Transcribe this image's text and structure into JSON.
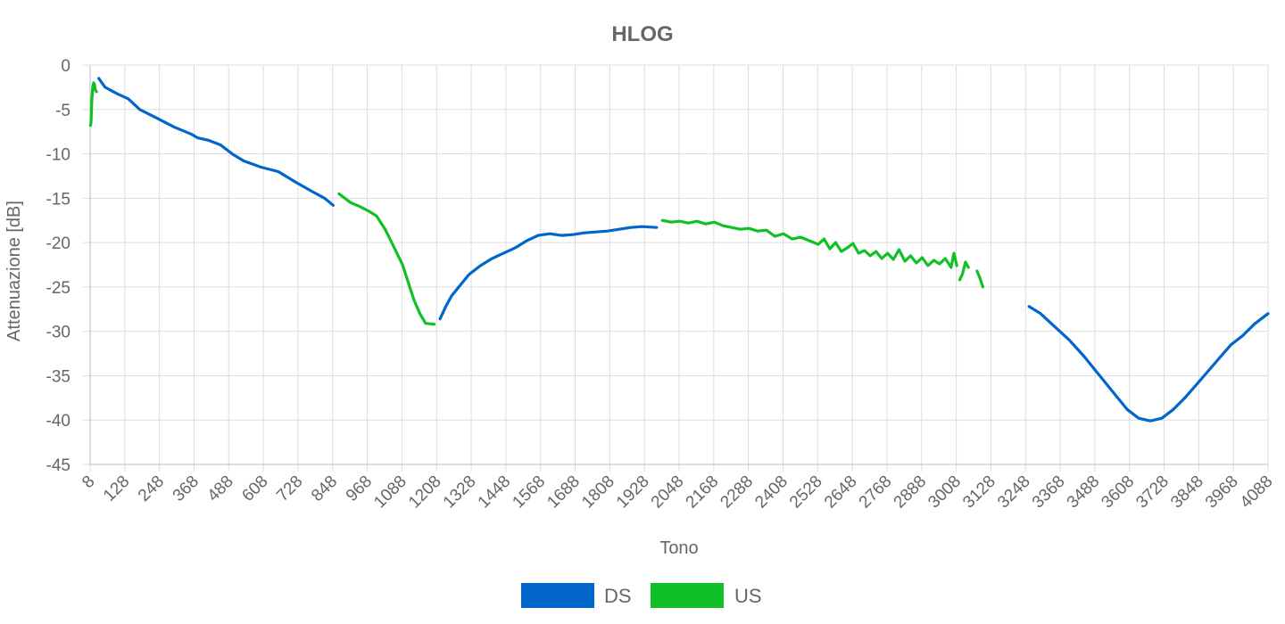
{
  "chart_data": {
    "type": "line",
    "title": "HLOG",
    "xlabel": "Tono",
    "ylabel": "Attenuazione [dB]",
    "xlim": [
      8,
      4088
    ],
    "ylim": [
      -45,
      0
    ],
    "grid": true,
    "legend_position": "bottom",
    "x_ticks": [
      8,
      128,
      248,
      368,
      488,
      608,
      728,
      848,
      968,
      1088,
      1208,
      1328,
      1448,
      1568,
      1688,
      1808,
      1928,
      2048,
      2168,
      2288,
      2408,
      2528,
      2648,
      2768,
      2888,
      3008,
      3128,
      3248,
      3368,
      3488,
      3608,
      3728,
      3848,
      3968,
      4088
    ],
    "y_ticks": [
      0,
      -5,
      -10,
      -15,
      -20,
      -25,
      -30,
      -35,
      -40,
      -45
    ],
    "series": [
      {
        "name": "DS",
        "color": "#0066CC",
        "segments": [
          [
            [
              38,
              -1.5
            ],
            [
              60,
              -2.5
            ],
            [
              100,
              -3.2
            ],
            [
              140,
              -3.8
            ],
            [
              180,
              -5.0
            ],
            [
              240,
              -6.0
            ],
            [
              300,
              -7.0
            ],
            [
              360,
              -7.8
            ],
            [
              380,
              -8.2
            ],
            [
              420,
              -8.5
            ],
            [
              460,
              -9.0
            ],
            [
              500,
              -10.0
            ],
            [
              540,
              -10.8
            ],
            [
              600,
              -11.5
            ],
            [
              660,
              -12.0
            ],
            [
              720,
              -13.2
            ],
            [
              780,
              -14.3
            ],
            [
              820,
              -15.0
            ],
            [
              850,
              -15.8
            ]
          ],
          [
            [
              1220,
              -28.6
            ],
            [
              1240,
              -27.2
            ],
            [
              1260,
              -26.0
            ],
            [
              1290,
              -24.8
            ],
            [
              1320,
              -23.6
            ],
            [
              1360,
              -22.6
            ],
            [
              1400,
              -21.8
            ],
            [
              1440,
              -21.2
            ],
            [
              1480,
              -20.6
            ],
            [
              1520,
              -19.8
            ],
            [
              1560,
              -19.2
            ],
            [
              1600,
              -19.0
            ],
            [
              1640,
              -19.2
            ],
            [
              1680,
              -19.1
            ],
            [
              1720,
              -18.9
            ],
            [
              1760,
              -18.8
            ],
            [
              1800,
              -18.7
            ],
            [
              1840,
              -18.5
            ],
            [
              1880,
              -18.3
            ],
            [
              1920,
              -18.2
            ],
            [
              1970,
              -18.3
            ]
          ],
          [
            [
              3260,
              -27.2
            ],
            [
              3300,
              -28.0
            ],
            [
              3350,
              -29.5
            ],
            [
              3400,
              -31.0
            ],
            [
              3450,
              -32.8
            ],
            [
              3500,
              -34.8
            ],
            [
              3550,
              -36.8
            ],
            [
              3600,
              -38.8
            ],
            [
              3640,
              -39.8
            ],
            [
              3680,
              -40.1
            ],
            [
              3720,
              -39.8
            ],
            [
              3760,
              -38.8
            ],
            [
              3800,
              -37.5
            ],
            [
              3840,
              -36.0
            ],
            [
              3880,
              -34.5
            ],
            [
              3920,
              -33.0
            ],
            [
              3960,
              -31.5
            ],
            [
              4000,
              -30.5
            ],
            [
              4040,
              -29.2
            ],
            [
              4088,
              -28.0
            ]
          ]
        ]
      },
      {
        "name": "US",
        "color": "#11C026",
        "segments": [
          [
            [
              9,
              -6.8
            ],
            [
              11,
              -6.5
            ],
            [
              14,
              -4.0
            ],
            [
              17,
              -2.5
            ],
            [
              20,
              -2.0
            ],
            [
              23,
              -2.2
            ],
            [
              26,
              -2.8
            ],
            [
              30,
              -3.0
            ]
          ],
          [
            [
              870,
              -14.5
            ],
            [
              890,
              -15.0
            ],
            [
              910,
              -15.5
            ],
            [
              940,
              -15.9
            ],
            [
              970,
              -16.4
            ],
            [
              1000,
              -17.0
            ],
            [
              1030,
              -18.5
            ],
            [
              1060,
              -20.5
            ],
            [
              1090,
              -22.5
            ],
            [
              1110,
              -24.5
            ],
            [
              1130,
              -26.5
            ],
            [
              1150,
              -28.0
            ],
            [
              1170,
              -29.1
            ],
            [
              1200,
              -29.2
            ]
          ],
          [
            [
              1990,
              -17.5
            ],
            [
              2020,
              -17.7
            ],
            [
              2050,
              -17.6
            ],
            [
              2080,
              -17.8
            ],
            [
              2110,
              -17.6
            ],
            [
              2140,
              -17.9
            ],
            [
              2170,
              -17.7
            ],
            [
              2200,
              -18.1
            ],
            [
              2230,
              -18.3
            ],
            [
              2260,
              -18.5
            ],
            [
              2290,
              -18.4
            ],
            [
              2320,
              -18.7
            ],
            [
              2350,
              -18.6
            ],
            [
              2380,
              -19.3
            ],
            [
              2410,
              -19.0
            ],
            [
              2440,
              -19.6
            ],
            [
              2470,
              -19.4
            ],
            [
              2500,
              -19.8
            ],
            [
              2530,
              -20.2
            ],
            [
              2550,
              -19.6
            ],
            [
              2570,
              -20.7
            ],
            [
              2590,
              -20.0
            ],
            [
              2610,
              -21.0
            ],
            [
              2630,
              -20.6
            ],
            [
              2650,
              -20.1
            ],
            [
              2670,
              -21.2
            ],
            [
              2690,
              -20.9
            ],
            [
              2710,
              -21.5
            ],
            [
              2730,
              -21.0
            ],
            [
              2750,
              -21.8
            ],
            [
              2770,
              -21.2
            ],
            [
              2790,
              -21.9
            ],
            [
              2810,
              -20.8
            ],
            [
              2830,
              -22.1
            ],
            [
              2850,
              -21.5
            ],
            [
              2870,
              -22.3
            ],
            [
              2890,
              -21.7
            ],
            [
              2910,
              -22.6
            ],
            [
              2930,
              -22.0
            ],
            [
              2950,
              -22.4
            ],
            [
              2970,
              -21.8
            ],
            [
              2990,
              -22.8
            ],
            [
              3000,
              -21.2
            ],
            [
              3010,
              -22.6
            ]
          ],
          [
            [
              3020,
              -24.2
            ],
            [
              3030,
              -23.5
            ],
            [
              3040,
              -22.2
            ],
            [
              3050,
              -22.8
            ]
          ],
          [
            [
              3080,
              -23.2
            ],
            [
              3090,
              -24.0
            ],
            [
              3100,
              -25.0
            ]
          ]
        ]
      }
    ]
  }
}
